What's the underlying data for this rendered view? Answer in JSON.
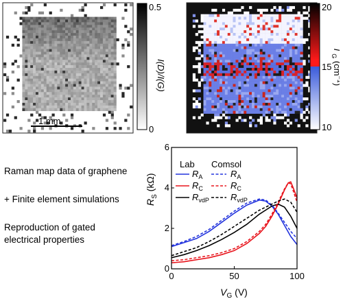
{
  "panel_a": {
    "colorbar_ticks": [
      "0.5",
      "0"
    ],
    "colorbar_label": "I(D)/I(G)",
    "scale_bar_label": "1 mm"
  },
  "panel_b": {
    "colorbar_ticks": [
      "20",
      "15",
      "10"
    ],
    "colorbar_label_base": "Γ",
    "colorbar_label_sub": "G",
    "colorbar_label_unit": " (cm",
    "colorbar_label_sup": "−1",
    "colorbar_label_end": ")",
    "colors": {
      "low": "#ffffff",
      "mid_low": "#3b5bdb",
      "mid_high": "#ff1a1a",
      "high": "#000000"
    }
  },
  "captions": {
    "line1": "Raman map data of graphene",
    "line2": "+ Finite element simulations",
    "line3": "Reproduction of gated",
    "line4": "electrical properties"
  },
  "chart_data": {
    "type": "line",
    "xlabel_base": "V",
    "xlabel_sub": "G",
    "xlabel_unit": " (V)",
    "ylabel_base": "R",
    "ylabel_sub": "S",
    "ylabel_unit": " (kΩ)",
    "xlim": [
      0,
      100
    ],
    "ylim": [
      0,
      6
    ],
    "xticks": [
      "0",
      "50",
      "100"
    ],
    "yticks": [
      "0",
      "2",
      "4",
      "6"
    ],
    "legend_headers": [
      "Lab",
      "Comsol"
    ],
    "legend_placement": "top",
    "series": [
      {
        "name": "R",
        "sub": "A",
        "color": "#2233dd",
        "dashed": false,
        "x": [
          0,
          10,
          20,
          30,
          40,
          50,
          60,
          70,
          75,
          80,
          85,
          90,
          95,
          100
        ],
        "y": [
          1.1,
          1.3,
          1.5,
          1.85,
          2.3,
          2.75,
          3.15,
          3.4,
          3.35,
          3.1,
          2.7,
          2.15,
          1.6,
          1.2
        ]
      },
      {
        "name": "R",
        "sub": "C",
        "color": "#e8141c",
        "dashed": false,
        "x": [
          0,
          10,
          20,
          30,
          40,
          50,
          60,
          70,
          75,
          80,
          85,
          90,
          93,
          95,
          97,
          100
        ],
        "y": [
          0.3,
          0.35,
          0.45,
          0.55,
          0.7,
          0.9,
          1.25,
          1.75,
          2.1,
          2.6,
          3.2,
          3.9,
          4.25,
          4.3,
          4.0,
          3.5
        ]
      },
      {
        "name": "R",
        "sub": "vdP",
        "color": "#000000",
        "dashed": false,
        "x": [
          0,
          10,
          20,
          30,
          40,
          50,
          60,
          70,
          80,
          85,
          90,
          95,
          100
        ],
        "y": [
          0.55,
          0.7,
          0.9,
          1.15,
          1.45,
          1.8,
          2.2,
          2.7,
          3.1,
          3.2,
          3.05,
          2.6,
          2.0
        ]
      },
      {
        "name": "R",
        "sub": "A",
        "color": "#2233dd",
        "dashed": true,
        "x": [
          0,
          10,
          20,
          30,
          40,
          50,
          60,
          70,
          75,
          80,
          85,
          90,
          95,
          100
        ],
        "y": [
          1.15,
          1.35,
          1.6,
          1.95,
          2.4,
          2.85,
          3.25,
          3.45,
          3.4,
          3.15,
          2.75,
          2.3,
          1.85,
          1.5
        ]
      },
      {
        "name": "R",
        "sub": "C",
        "color": "#e8141c",
        "dashed": true,
        "x": [
          0,
          10,
          20,
          30,
          40,
          50,
          60,
          70,
          75,
          80,
          85,
          90,
          93,
          95,
          97,
          100
        ],
        "y": [
          0.4,
          0.45,
          0.55,
          0.65,
          0.8,
          1.0,
          1.35,
          1.85,
          2.2,
          2.7,
          3.3,
          3.95,
          4.25,
          4.2,
          3.85,
          3.3
        ]
      },
      {
        "name": "R",
        "sub": "vdP",
        "color": "#000000",
        "dashed": true,
        "x": [
          0,
          10,
          20,
          30,
          40,
          50,
          60,
          70,
          80,
          85,
          90,
          95,
          100
        ],
        "y": [
          0.65,
          0.85,
          1.05,
          1.35,
          1.7,
          2.1,
          2.5,
          2.9,
          3.2,
          3.35,
          3.45,
          3.3,
          2.8
        ]
      }
    ]
  }
}
